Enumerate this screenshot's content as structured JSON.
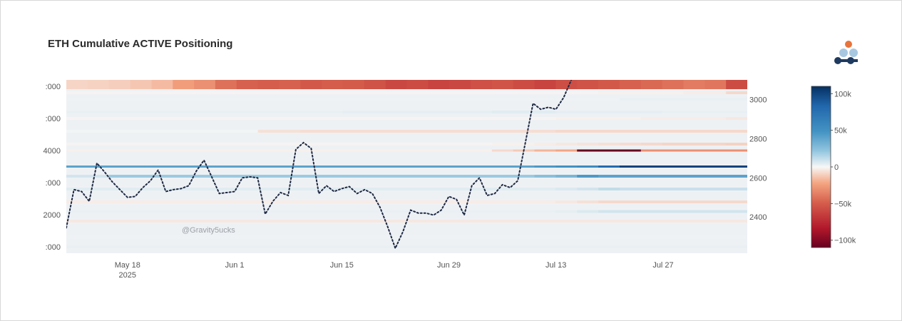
{
  "title": "ETH Cumulative ACTIVE Positioning",
  "watermark": "@Gravity5ucks",
  "colors": {
    "price_line": "#1f2a44",
    "logo_orange": "#e8743b",
    "logo_light_blue": "#a8c8e0",
    "logo_dark_blue": "#1f3a5f"
  },
  "icons": {
    "logo": "gravity-logo-icon"
  },
  "chart_data": {
    "type": "heatmap",
    "title": "ETH Cumulative ACTIVE Positioning",
    "x_tick_labels": [
      "May 18\n2025",
      "Jun 1",
      "Jun 15",
      "Jun 29",
      "Jul 13",
      "Jul 27"
    ],
    "x_tick_dates": [
      "2025-05-18",
      "2025-06-01",
      "2025-06-15",
      "2025-06-29",
      "2025-07-13",
      "2025-07-27"
    ],
    "x_range": [
      "2025-05-10",
      "2025-08-07"
    ],
    "y_left_ticks": [
      "1000",
      "2000",
      "3000",
      "4000",
      "5000",
      "6000"
    ],
    "y_left_tick_labels": [
      ":000",
      "2000",
      ":000",
      "4000",
      ":000",
      ":000"
    ],
    "y_left_range": [
      800,
      6200
    ],
    "y_right_ticks": [
      2400,
      2600,
      2800,
      3000
    ],
    "y_right_range": [
      2215,
      3100
    ],
    "colorbar": {
      "ticks": [
        100000,
        50000,
        0,
        -50000,
        -100000
      ],
      "tick_labels": [
        "100k",
        "50k",
        "0",
        "−50k",
        "−100k"
      ],
      "range": [
        -110000,
        110000
      ],
      "colorscale": "RdBu"
    },
    "price_series": {
      "line_style": "dotted",
      "axis": "right",
      "points": [
        [
          "2025-05-10",
          2345
        ],
        [
          "2025-05-11",
          2540
        ],
        [
          "2025-05-12",
          2530
        ],
        [
          "2025-05-13",
          2480
        ],
        [
          "2025-05-14",
          2675
        ],
        [
          "2025-05-15",
          2630
        ],
        [
          "2025-05-16",
          2580
        ],
        [
          "2025-05-17",
          2540
        ],
        [
          "2025-05-18",
          2500
        ],
        [
          "2025-05-19",
          2505
        ],
        [
          "2025-05-20",
          2550
        ],
        [
          "2025-05-21",
          2585
        ],
        [
          "2025-05-22",
          2640
        ],
        [
          "2025-05-23",
          2530
        ],
        [
          "2025-05-24",
          2540
        ],
        [
          "2025-05-25",
          2545
        ],
        [
          "2025-05-26",
          2560
        ],
        [
          "2025-05-27",
          2635
        ],
        [
          "2025-05-28",
          2690
        ],
        [
          "2025-05-29",
          2605
        ],
        [
          "2025-05-30",
          2520
        ],
        [
          "2025-05-31",
          2525
        ],
        [
          "2025-06-01",
          2530
        ],
        [
          "2025-06-02",
          2600
        ],
        [
          "2025-06-03",
          2605
        ],
        [
          "2025-06-04",
          2600
        ],
        [
          "2025-06-05",
          2415
        ],
        [
          "2025-06-06",
          2480
        ],
        [
          "2025-06-07",
          2525
        ],
        [
          "2025-06-08",
          2510
        ],
        [
          "2025-06-09",
          2745
        ],
        [
          "2025-06-10",
          2780
        ],
        [
          "2025-06-11",
          2750
        ],
        [
          "2025-06-12",
          2520
        ],
        [
          "2025-06-13",
          2560
        ],
        [
          "2025-06-14",
          2530
        ],
        [
          "2025-06-15",
          2545
        ],
        [
          "2025-06-16",
          2555
        ],
        [
          "2025-06-17",
          2520
        ],
        [
          "2025-06-18",
          2540
        ],
        [
          "2025-06-19",
          2520
        ],
        [
          "2025-06-20",
          2450
        ],
        [
          "2025-06-21",
          2350
        ],
        [
          "2025-06-22",
          2240
        ],
        [
          "2025-06-23",
          2325
        ],
        [
          "2025-06-24",
          2435
        ],
        [
          "2025-06-25",
          2420
        ],
        [
          "2025-06-26",
          2420
        ],
        [
          "2025-06-27",
          2410
        ],
        [
          "2025-06-28",
          2435
        ],
        [
          "2025-06-29",
          2505
        ],
        [
          "2025-06-30",
          2490
        ],
        [
          "2025-07-01",
          2410
        ],
        [
          "2025-07-02",
          2560
        ],
        [
          "2025-07-03",
          2600
        ],
        [
          "2025-07-04",
          2510
        ],
        [
          "2025-07-05",
          2520
        ],
        [
          "2025-07-06",
          2565
        ],
        [
          "2025-07-07",
          2550
        ],
        [
          "2025-07-08",
          2585
        ],
        [
          "2025-07-09",
          2780
        ],
        [
          "2025-07-10",
          2980
        ],
        [
          "2025-07-11",
          2950
        ],
        [
          "2025-07-12",
          2960
        ],
        [
          "2025-07-13",
          2950
        ],
        [
          "2025-07-14",
          3010
        ],
        [
          "2025-07-15",
          3100
        ]
      ]
    },
    "heatmap_bands": [
      {
        "y": 6000,
        "values": [
          -9000,
          -10000,
          -11000,
          -13000,
          -16000,
          -25000,
          -30000,
          -42000,
          -48000,
          -50000,
          -48000,
          -52000,
          -50000,
          -51000,
          -55000,
          -60000,
          -58000,
          -62000,
          -60000,
          -56000,
          -54000,
          -58000,
          -62000,
          -57000,
          -55000,
          -52000,
          -48000,
          -45000,
          -42000,
          -38000,
          -40000,
          -58000
        ]
      },
      {
        "y": 5800,
        "values": [
          -1000,
          -1000,
          -1000,
          -1000,
          -1000,
          -1000,
          -1000,
          -1000,
          -1000,
          -1000,
          -1000,
          -1000,
          -1000,
          -1000,
          -1000,
          -1000,
          -1000,
          -1000,
          -1000,
          -1000,
          -1000,
          -1000,
          -1000,
          -1000,
          -1000,
          -2000,
          -2000,
          -2000,
          -2000,
          -3000,
          -3000,
          -8000
        ]
      },
      {
        "y": 5600,
        "values": [
          2000,
          2000,
          2000,
          2000,
          2000,
          2000,
          2000,
          2000,
          2000,
          2000,
          2000,
          2000,
          2000,
          2000,
          2000,
          2000,
          2000,
          2000,
          2000,
          2000,
          2000,
          2000,
          2000,
          2000,
          2000,
          2000,
          3000,
          3000,
          3000,
          3000,
          3000,
          3000
        ]
      },
      {
        "y": 5200,
        "values": [
          3000,
          3000,
          3000,
          3000,
          3000,
          3000,
          3000,
          3000,
          3000,
          3000,
          3000,
          3000,
          3000,
          4000,
          4000,
          4000,
          4000,
          4000,
          4000,
          4000,
          5000,
          5000,
          5000,
          4000,
          4000,
          4000,
          4000,
          4000,
          3000,
          3000,
          3000,
          3000
        ]
      },
      {
        "y": 5000,
        "values": [
          -1000,
          -1000,
          -1000,
          -1000,
          -1000,
          -1000,
          -1000,
          -1000,
          -1000,
          -1000,
          -1000,
          -1000,
          -1000,
          -1000,
          -1000,
          -1000,
          -1000,
          -1000,
          -1000,
          -1000,
          -1000,
          -1000,
          -1000,
          -2000,
          -2000,
          -2000,
          -2000,
          -3000,
          -3000,
          -3000,
          -3000,
          -4000
        ]
      },
      {
        "y": 4600,
        "values": [
          1000,
          1000,
          1000,
          1000,
          1000,
          1000,
          1000,
          1000,
          1000,
          -6000,
          -6000,
          -7000,
          -7000,
          -7000,
          -7000,
          -7000,
          -7000,
          -7000,
          -7000,
          -7000,
          -7000,
          -7000,
          -7000,
          -8000,
          -8000,
          -8000,
          -8000,
          -8000,
          -8000,
          -8000,
          -8000,
          -8000
        ]
      },
      {
        "y": 4200,
        "values": [
          -1000,
          -1000,
          -1000,
          -1000,
          -1000,
          -1000,
          -1000,
          -1000,
          -1000,
          -1000,
          -1000,
          -1000,
          -1000,
          -1000,
          -1000,
          -1000,
          -1000,
          -1000,
          -1000,
          -1000,
          -2000,
          -2000,
          -3000,
          -4000,
          -5000,
          -6000,
          -7000,
          -8000,
          -9000,
          -9000,
          -9000,
          -10000
        ]
      },
      {
        "y": 4000,
        "values": [
          -2000,
          -2000,
          -2000,
          -2000,
          -2000,
          -2000,
          -2000,
          -2000,
          -2000,
          -2000,
          -2000,
          -2000,
          -2000,
          -2000,
          -2000,
          -2000,
          -2000,
          -2000,
          -2000,
          -2000,
          -8000,
          -12000,
          -18000,
          -22000,
          -110000,
          -110000,
          -110000,
          -30000,
          -30000,
          -30000,
          -30000,
          -30000
        ]
      },
      {
        "y": 3500,
        "values": [
          40000,
          40000,
          40000,
          40000,
          40000,
          40000,
          40000,
          40000,
          40000,
          40000,
          40000,
          40000,
          40000,
          40000,
          40000,
          40000,
          40000,
          40000,
          40000,
          40000,
          40000,
          40000,
          45000,
          50000,
          55000,
          80000,
          100000,
          100000,
          100000,
          100000,
          100000,
          100000
        ]
      },
      {
        "y": 3200,
        "values": [
          8000,
          8000,
          20000,
          20000,
          20000,
          20000,
          20000,
          20000,
          20000,
          20000,
          20000,
          20000,
          20000,
          20000,
          20000,
          20000,
          20000,
          20000,
          20000,
          20000,
          20000,
          20000,
          25000,
          30000,
          45000,
          40000,
          40000,
          40000,
          40000,
          40000,
          40000,
          40000
        ]
      },
      {
        "y": 2800,
        "values": [
          5000,
          5000,
          5000,
          5000,
          5000,
          5000,
          5000,
          5000,
          5000,
          5000,
          5000,
          5000,
          5000,
          5000,
          5000,
          5000,
          5000,
          5000,
          5000,
          5000,
          5000,
          5000,
          5000,
          6000,
          8000,
          12000,
          10000,
          10000,
          10000,
          10000,
          10000,
          10000
        ]
      },
      {
        "y": 2400,
        "values": [
          -3000,
          -3000,
          -3000,
          -3000,
          -3000,
          -3000,
          -3000,
          -3000,
          -3000,
          -3000,
          -3000,
          -3000,
          -3000,
          -3000,
          -3000,
          -3000,
          -3000,
          -3000,
          -3000,
          -3000,
          -3000,
          -3000,
          -3000,
          -4000,
          -6000,
          -8000,
          -8000,
          -8000,
          -8000,
          -8000,
          -8000,
          -8000
        ]
      },
      {
        "y": 2100,
        "values": [
          3000,
          3000,
          3000,
          3000,
          3000,
          3000,
          3000,
          3000,
          3000,
          3000,
          3000,
          3000,
          3000,
          3000,
          3000,
          3000,
          3000,
          3000,
          3000,
          3000,
          3000,
          3000,
          3000,
          4000,
          6000,
          8000,
          8000,
          8000,
          8000,
          8000,
          8000,
          8000
        ]
      },
      {
        "y": 1800,
        "values": [
          -4000,
          -4000,
          -4000,
          -4000,
          -4000,
          -4000,
          -4000,
          -4000,
          -4000,
          -4000,
          -4000,
          -4000,
          -4000,
          -4000,
          -4000,
          -4000,
          -4000,
          -4000,
          -4000,
          -4000,
          -4000,
          -4000,
          -4000,
          -4000,
          -4000,
          -4000,
          -4000,
          -4000,
          -4000,
          -4000,
          -4000,
          -4000
        ]
      },
      {
        "y": 1300,
        "values": [
          2000,
          2000,
          2000,
          2000,
          2000,
          2000,
          2000,
          2000,
          2000,
          2000,
          2000,
          2000,
          2000,
          2000,
          2000,
          2000,
          2000,
          2000,
          2000,
          2000,
          2000,
          2000,
          2000,
          2000,
          2000,
          2000,
          2000,
          2000,
          2000,
          2000,
          2000,
          2000
        ]
      },
      {
        "y": 1000,
        "values": [
          3000,
          3000,
          3000,
          3000,
          3000,
          3000,
          3000,
          3000,
          3000,
          3000,
          3000,
          3000,
          3000,
          3000,
          3000,
          3000,
          3000,
          3000,
          3000,
          3000,
          3000,
          3000,
          3000,
          3000,
          3000,
          3000,
          3000,
          3000,
          3000,
          3000,
          3000,
          3000
        ]
      }
    ]
  }
}
